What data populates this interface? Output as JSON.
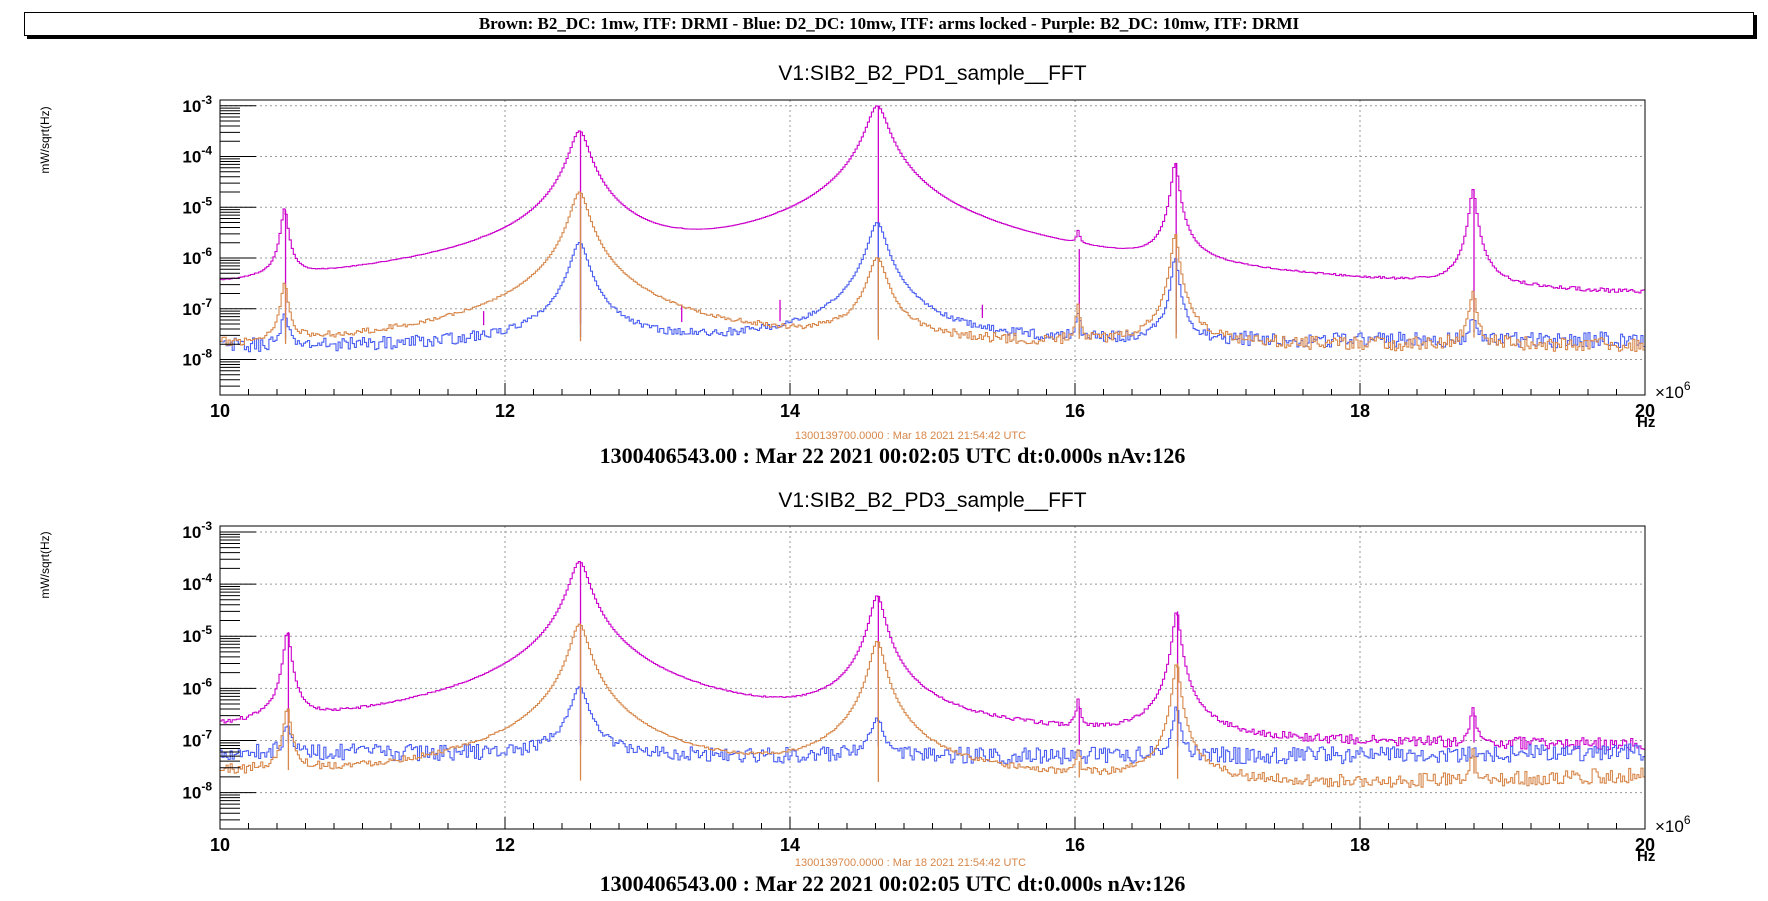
{
  "header": {
    "legend_banner": "Brown: B2_DC: 1mw, ITF: DRMI - Blue: D2_DC: 10mw, ITF: arms locked - Purple: B2_DC: 10mw, ITF: DRMI"
  },
  "colors": {
    "brown": "#d7874a",
    "blue": "#4a5ff0",
    "purple": "#cc00cc",
    "grid": "#9a9a9a",
    "ref_stamp": "#d7874a"
  },
  "chart_data": [
    {
      "type": "line",
      "title": "V1:SIB2_B2_PD1_sample__FFT",
      "ylabel": "mW/sqrt(Hz)",
      "xlabel": "Hz",
      "x_multiplier": "×10^6",
      "xlim": [
        10,
        20
      ],
      "ylim": [
        2e-09,
        0.0013
      ],
      "yscale": "log",
      "grid": true,
      "xticks": [
        "10",
        "12",
        "14",
        "16",
        "18",
        "20"
      ],
      "yticks": [
        {
          "base": "10",
          "exp": "-8"
        },
        {
          "base": "10",
          "exp": "-7"
        },
        {
          "base": "10",
          "exp": "-6"
        },
        {
          "base": "10",
          "exp": "-5"
        },
        {
          "base": "10",
          "exp": "-4"
        },
        {
          "base": "10",
          "exp": "-3"
        }
      ],
      "ref_stamp": "1300139700.0000 : Mar 18 2021 21:54:42 UTC",
      "footer": "1300406543.00 : Mar 22 2021 00:02:05 UTC dt:0.000s nAv:126",
      "series": [
        {
          "color_key": "purple",
          "floor": [
            [
              10,
              2.8e-08
            ],
            [
              11,
              3e-08
            ],
            [
              12,
              3.2e-08
            ],
            [
              13,
              3.6e-08
            ],
            [
              14,
              3.8e-08
            ],
            [
              15,
              4.3e-08
            ],
            [
              16,
              4.6e-08
            ],
            [
              17,
              5e-08
            ],
            [
              18,
              5.5e-08
            ],
            [
              19,
              5.8e-08
            ],
            [
              20,
              6e-08
            ]
          ],
          "peaks": [
            {
              "x": 10.46,
              "y": 9e-06,
              "w": 0.02
            },
            {
              "x": 11.85,
              "y": 9e-08,
              "w": 0.01
            },
            {
              "x": 12.53,
              "y": 0.00032,
              "w": 0.055
            },
            {
              "x": 13.24,
              "y": 1.2e-07,
              "w": 0.01
            },
            {
              "x": 13.93,
              "y": 1.5e-07,
              "w": 0.01
            },
            {
              "x": 14.62,
              "y": 0.001,
              "w": 0.06
            },
            {
              "x": 15.35,
              "y": 1.2e-07,
              "w": 0.01
            },
            {
              "x": 16.03,
              "y": 1.5e-06,
              "w": 0.012
            },
            {
              "x": 16.71,
              "y": 7.5e-05,
              "w": 0.02
            },
            {
              "x": 18.8,
              "y": 2.2e-05,
              "w": 0.02
            }
          ]
        },
        {
          "color_key": "blue",
          "floor": [
            [
              10,
              1.7e-08
            ],
            [
              12,
              1.8e-08
            ],
            [
              14,
              1.9e-08
            ],
            [
              16,
              2.1e-08
            ],
            [
              18,
              2.3e-08
            ],
            [
              20,
              2.4e-08
            ]
          ],
          "peaks": [
            {
              "x": 10.46,
              "y": 6e-08,
              "w": 0.02
            },
            {
              "x": 12.53,
              "y": 2e-06,
              "w": 0.05
            },
            {
              "x": 14.62,
              "y": 5e-06,
              "w": 0.05
            },
            {
              "x": 16.03,
              "y": 5e-08,
              "w": 0.012
            },
            {
              "x": 16.71,
              "y": 1e-06,
              "w": 0.02
            },
            {
              "x": 18.8,
              "y": 4e-08,
              "w": 0.02
            }
          ]
        },
        {
          "color_key": "brown",
          "floor": [
            [
              10,
              1.3e-08
            ],
            [
              12,
              1.5e-08
            ],
            [
              14,
              1.6e-08
            ],
            [
              16,
              1.7e-08
            ],
            [
              18,
              1.8e-08
            ],
            [
              20,
              1.8e-08
            ]
          ],
          "peaks": [
            {
              "x": 10.46,
              "y": 3e-07,
              "w": 0.02
            },
            {
              "x": 12.53,
              "y": 2e-05,
              "w": 0.05
            },
            {
              "x": 14.62,
              "y": 1e-06,
              "w": 0.05
            },
            {
              "x": 16.03,
              "y": 1e-07,
              "w": 0.012
            },
            {
              "x": 16.71,
              "y": 3e-06,
              "w": 0.02
            },
            {
              "x": 18.8,
              "y": 2e-07,
              "w": 0.02
            }
          ]
        }
      ]
    },
    {
      "type": "line",
      "title": "V1:SIB2_B2_PD3_sample__FFT",
      "ylabel": "mW/sqrt(Hz)",
      "xlabel": "Hz",
      "x_multiplier": "×10^6",
      "xlim": [
        10,
        20
      ],
      "ylim": [
        2e-09,
        0.0013
      ],
      "yscale": "log",
      "grid": true,
      "xticks": [
        "10",
        "12",
        "14",
        "16",
        "18",
        "20"
      ],
      "yticks": [
        {
          "base": "10",
          "exp": "-8"
        },
        {
          "base": "10",
          "exp": "-7"
        },
        {
          "base": "10",
          "exp": "-6"
        },
        {
          "base": "10",
          "exp": "-5"
        },
        {
          "base": "10",
          "exp": "-4"
        },
        {
          "base": "10",
          "exp": "-3"
        }
      ],
      "ref_stamp": "1300139700.0000 : Mar 18 2021 21:54:42 UTC",
      "footer": "1300406543.00 : Mar 22 2021 00:02:05 UTC dt:0.000s nAv:126",
      "series": [
        {
          "color_key": "purple",
          "floor": [
            [
              10,
              6.5e-08
            ],
            [
              12,
              6e-08
            ],
            [
              14,
              5.5e-08
            ],
            [
              16,
              5.5e-08
            ],
            [
              18,
              5.8e-08
            ],
            [
              20,
              6.5e-08
            ]
          ],
          "peaks": [
            {
              "x": 10.48,
              "y": 1.2e-05,
              "w": 0.02
            },
            {
              "x": 12.53,
              "y": 0.00027,
              "w": 0.055
            },
            {
              "x": 14.62,
              "y": 6e-05,
              "w": 0.04
            },
            {
              "x": 16.03,
              "y": 4.5e-07,
              "w": 0.012
            },
            {
              "x": 16.72,
              "y": 3e-05,
              "w": 0.02
            },
            {
              "x": 18.8,
              "y": 3.5e-07,
              "w": 0.015
            }
          ]
        },
        {
          "color_key": "blue",
          "floor": [
            [
              10,
              6e-08
            ],
            [
              12,
              5.5e-08
            ],
            [
              14,
              5e-08
            ],
            [
              16,
              5e-08
            ],
            [
              18,
              5.2e-08
            ],
            [
              20,
              6e-08
            ]
          ],
          "peaks": [
            {
              "x": 10.48,
              "y": 1.5e-07,
              "w": 0.02
            },
            {
              "x": 12.53,
              "y": 1e-06,
              "w": 0.05
            },
            {
              "x": 14.62,
              "y": 2e-07,
              "w": 0.04
            },
            {
              "x": 16.72,
              "y": 4e-07,
              "w": 0.02
            }
          ]
        },
        {
          "color_key": "brown",
          "floor": [
            [
              10,
              2e-08
            ],
            [
              11,
              1.6e-08
            ],
            [
              12,
              1.3e-08
            ],
            [
              13,
              1e-08
            ],
            [
              14,
              1e-08
            ],
            [
              15,
              1.1e-08
            ],
            [
              16,
              1.3e-08
            ],
            [
              17,
              1.2e-08
            ],
            [
              18,
              1.3e-08
            ],
            [
              19,
              1.6e-08
            ],
            [
              20,
              2.1e-08
            ]
          ],
          "peaks": [
            {
              "x": 10.48,
              "y": 4e-07,
              "w": 0.02
            },
            {
              "x": 12.53,
              "y": 1.7e-05,
              "w": 0.05
            },
            {
              "x": 14.62,
              "y": 8e-06,
              "w": 0.04
            },
            {
              "x": 16.03,
              "y": 4e-08,
              "w": 0.012
            },
            {
              "x": 16.72,
              "y": 3e-06,
              "w": 0.02
            },
            {
              "x": 18.8,
              "y": 5e-08,
              "w": 0.015
            }
          ]
        }
      ]
    }
  ]
}
